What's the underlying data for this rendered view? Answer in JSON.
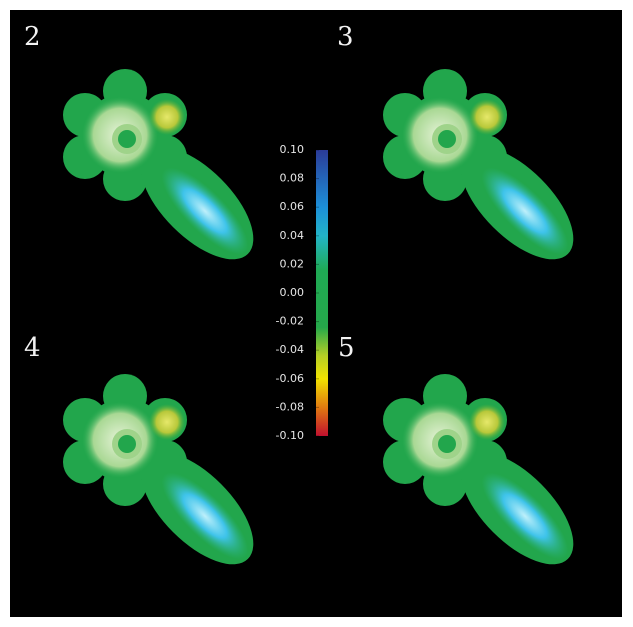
{
  "panels": [
    {
      "label": "2"
    },
    {
      "label": "3"
    },
    {
      "label": "4"
    },
    {
      "label": "5"
    }
  ],
  "colorbar": {
    "ticks": [
      {
        "value": 0.1,
        "label": "0.10"
      },
      {
        "value": 0.08,
        "label": "0.08"
      },
      {
        "value": 0.06,
        "label": "0.06"
      },
      {
        "value": 0.04,
        "label": "0.04"
      },
      {
        "value": 0.02,
        "label": "0.02"
      },
      {
        "value": 0,
        "label": "0.00"
      },
      {
        "value": -0.02,
        "label": "-0.02"
      },
      {
        "value": -0.04,
        "label": "-0.04"
      },
      {
        "value": -0.06,
        "label": "-0.06"
      },
      {
        "value": -0.08,
        "label": "-0.08"
      },
      {
        "value": -0.1,
        "label": "-0.10"
      }
    ]
  }
}
